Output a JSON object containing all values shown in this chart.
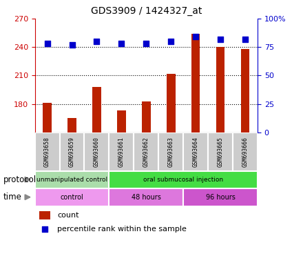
{
  "title": "GDS3909 / 1424327_at",
  "samples": [
    "GSM693658",
    "GSM693659",
    "GSM693660",
    "GSM693661",
    "GSM693662",
    "GSM693663",
    "GSM693664",
    "GSM693665",
    "GSM693666"
  ],
  "count_values": [
    181,
    165,
    198,
    173,
    183,
    212,
    254,
    240,
    238
  ],
  "percentile_values": [
    78,
    77,
    80,
    78,
    78,
    80,
    84,
    82,
    82
  ],
  "left_ylim": [
    150,
    270
  ],
  "left_yticks": [
    180,
    210,
    240,
    270
  ],
  "left_yticklabels": [
    "180",
    "210",
    "240",
    "270"
  ],
  "right_ylim": [
    0,
    100
  ],
  "right_yticks": [
    0,
    25,
    50,
    75,
    100
  ],
  "right_yticklabels": [
    "0",
    "25",
    "50",
    "75",
    "100%"
  ],
  "bar_color": "#bb2200",
  "dot_color": "#0000cc",
  "protocol_groups": [
    {
      "label": "unmanipulated control",
      "start": 0,
      "end": 3,
      "color": "#aaddaa"
    },
    {
      "label": "oral submucosal injection",
      "start": 3,
      "end": 9,
      "color": "#44dd44"
    }
  ],
  "time_groups": [
    {
      "label": "control",
      "start": 0,
      "end": 3,
      "color": "#ee99ee"
    },
    {
      "label": "48 hours",
      "start": 3,
      "end": 6,
      "color": "#dd77dd"
    },
    {
      "label": "96 hours",
      "start": 6,
      "end": 9,
      "color": "#cc55cc"
    }
  ],
  "legend_count_label": "count",
  "legend_pct_label": "percentile rank within the sample",
  "protocol_label": "protocol",
  "time_label": "time",
  "tick_color_left": "#cc0000",
  "tick_color_right": "#0000cc",
  "bar_width": 0.35,
  "dot_size": 35
}
